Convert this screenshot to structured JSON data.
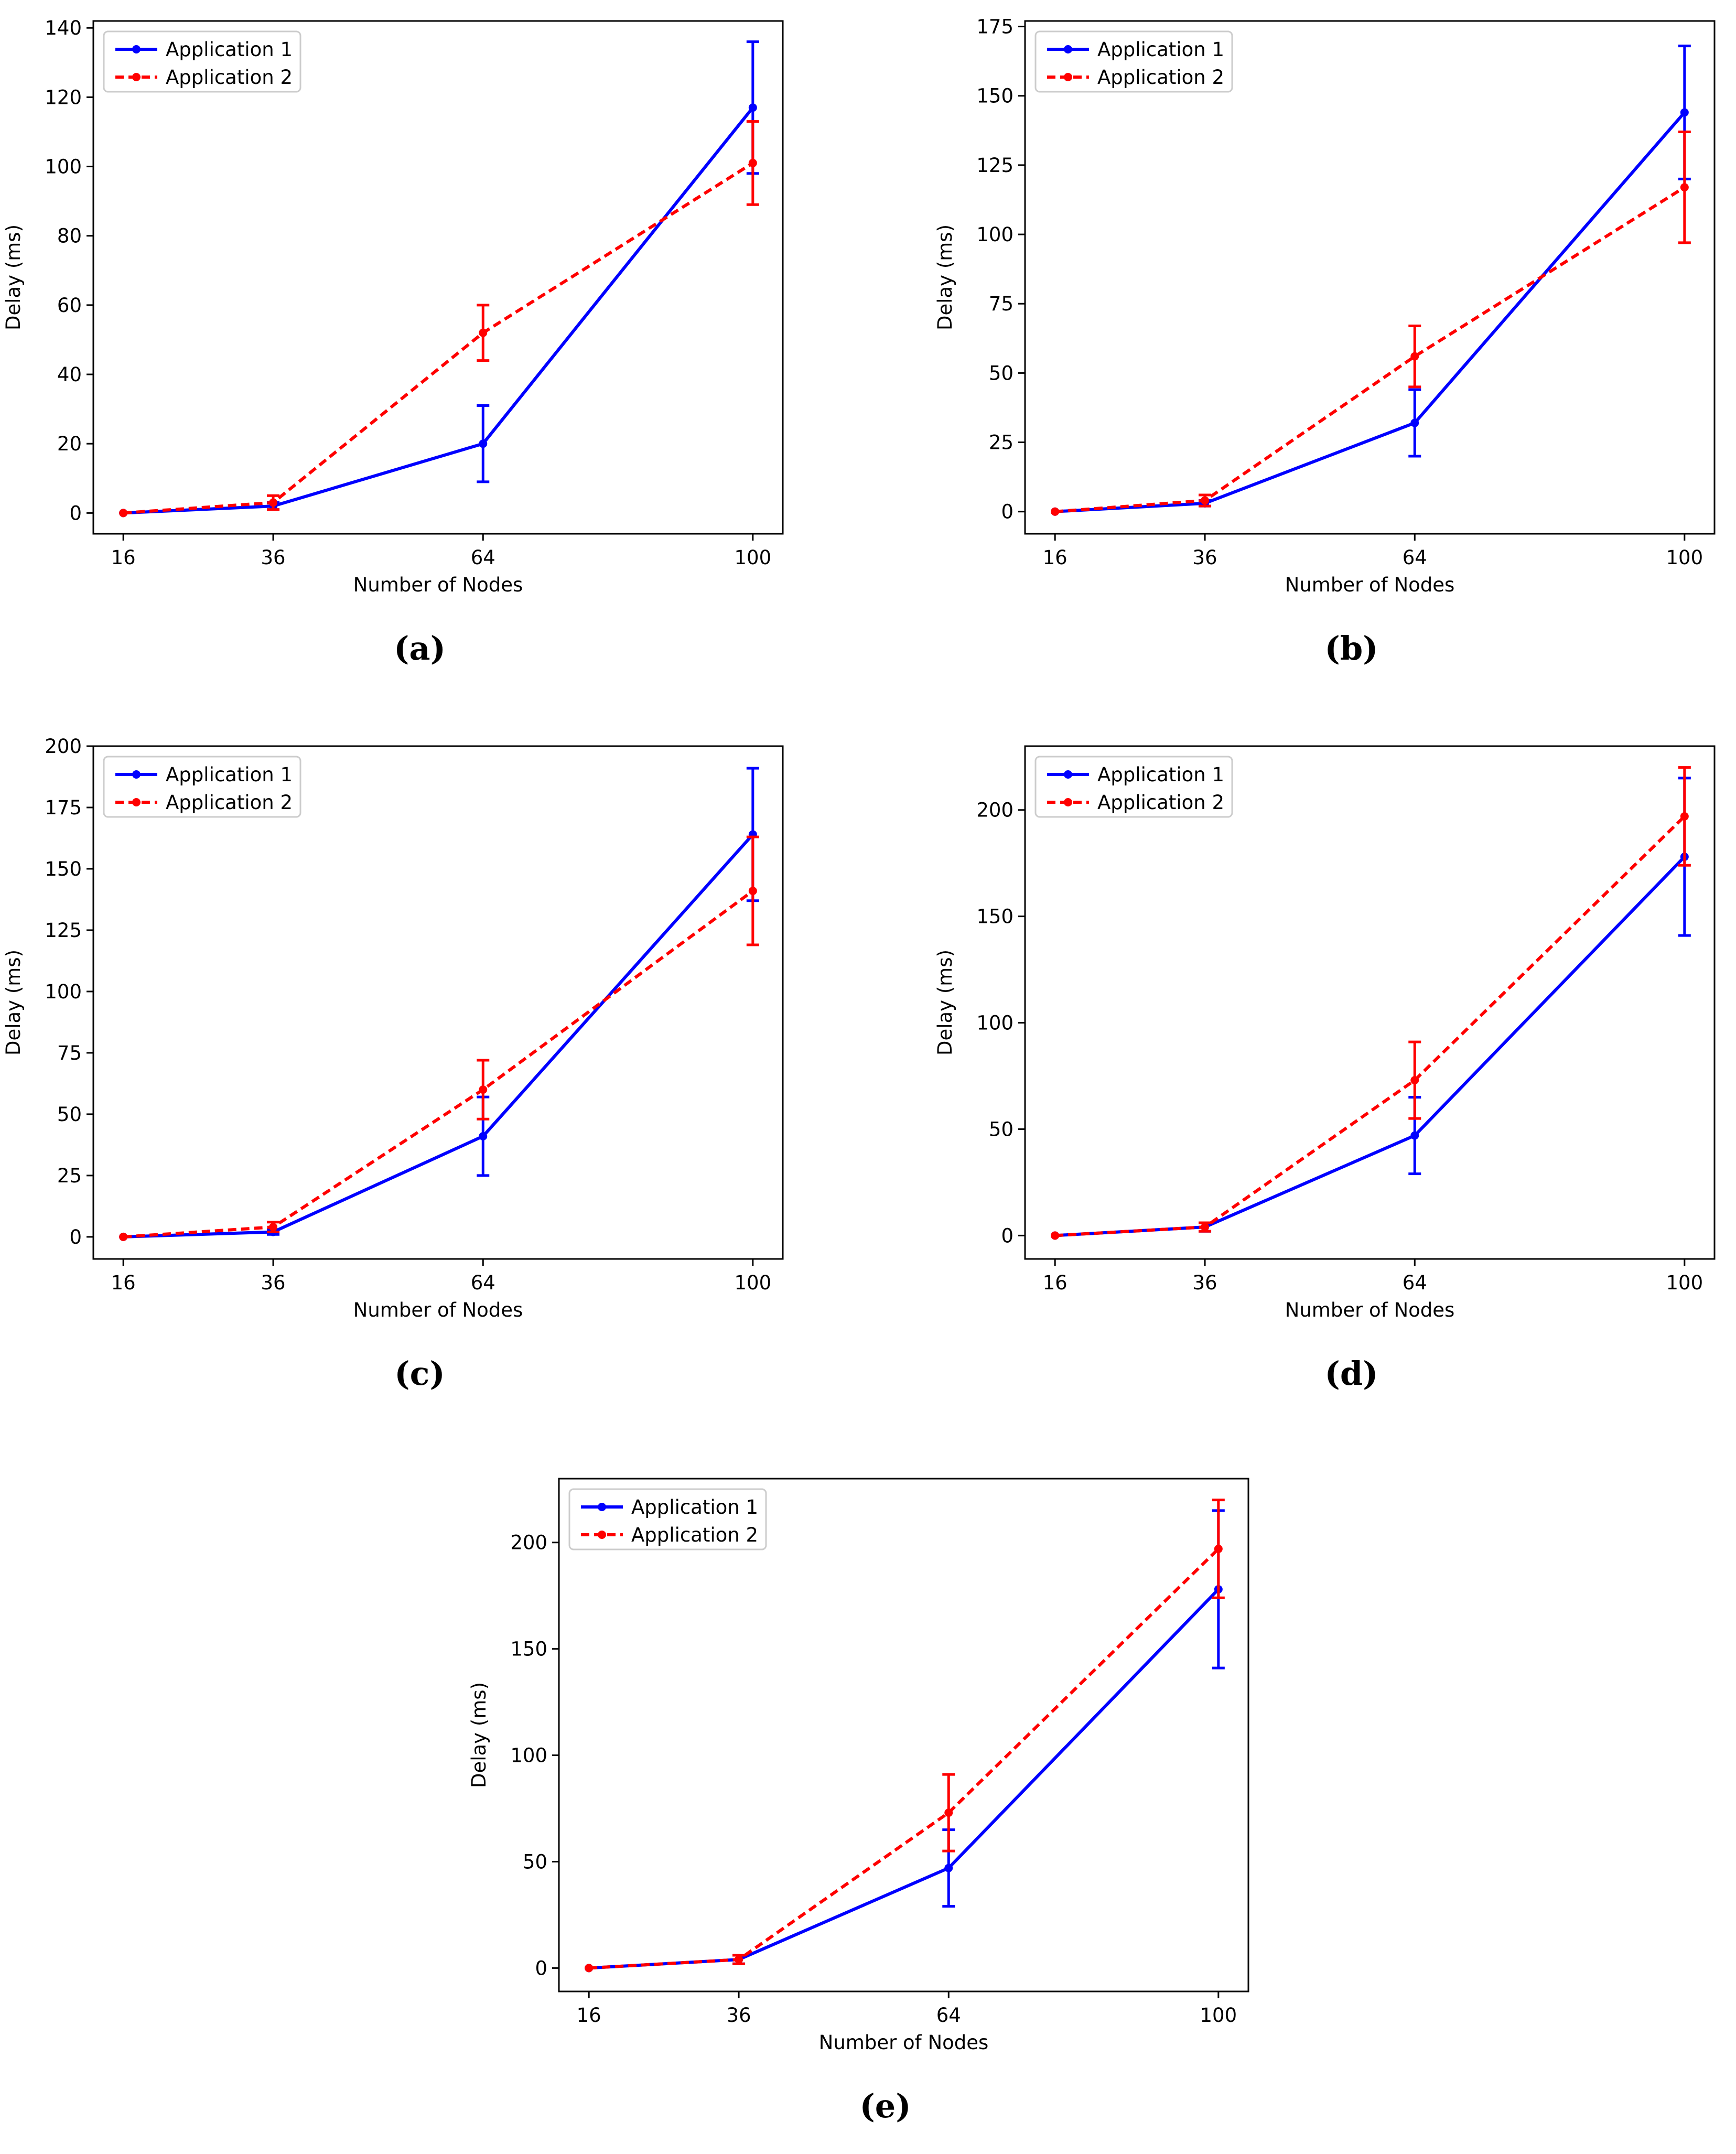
{
  "figure": {
    "panels_layout": "two columns, three rows, last panel centered"
  },
  "colors": {
    "application_1": "#0000ff",
    "application_2": "#ff0000"
  },
  "chart_data": [
    {
      "type": "line",
      "caption": "(a)",
      "xlabel": "Number of Nodes",
      "ylabel": "Delay (ms)",
      "x": [
        16,
        36,
        64,
        100
      ],
      "x_tick_labels": [
        "16",
        "36",
        "64",
        "100"
      ],
      "xlim": [
        12,
        104
      ],
      "ylim": [
        -6,
        142
      ],
      "y_ticks": [
        0,
        20,
        40,
        60,
        80,
        100,
        120,
        140
      ],
      "legend": {
        "position": "top-left",
        "entries": [
          "Application 1",
          "Application 2"
        ]
      },
      "series": [
        {
          "name": "Application 1",
          "values": [
            0,
            2,
            20,
            117
          ],
          "errors": [
            0,
            1,
            11,
            19
          ],
          "style": "solid"
        },
        {
          "name": "Application 2",
          "values": [
            0,
            3,
            52,
            101
          ],
          "errors": [
            0,
            2,
            8,
            12
          ],
          "style": "dashed"
        }
      ]
    },
    {
      "type": "line",
      "caption": "(b)",
      "xlabel": "Number of Nodes",
      "ylabel": "Delay (ms)",
      "x": [
        16,
        36,
        64,
        100
      ],
      "x_tick_labels": [
        "16",
        "36",
        "64",
        "100"
      ],
      "xlim": [
        12,
        104
      ],
      "ylim": [
        -8,
        177
      ],
      "y_ticks": [
        0,
        25,
        50,
        75,
        100,
        125,
        150,
        175
      ],
      "legend": {
        "position": "top-left",
        "entries": [
          "Application 1",
          "Application 2"
        ]
      },
      "series": [
        {
          "name": "Application 1",
          "values": [
            0,
            3,
            32,
            144
          ],
          "errors": [
            0,
            1,
            12,
            24
          ],
          "style": "solid"
        },
        {
          "name": "Application 2",
          "values": [
            0,
            4,
            56,
            117
          ],
          "errors": [
            0,
            2,
            11,
            20
          ],
          "style": "dashed"
        }
      ]
    },
    {
      "type": "line",
      "caption": "(c)",
      "xlabel": "Number of Nodes",
      "ylabel": "Delay (ms)",
      "x": [
        16,
        36,
        64,
        100
      ],
      "x_tick_labels": [
        "16",
        "36",
        "64",
        "100"
      ],
      "xlim": [
        12,
        104
      ],
      "ylim": [
        -9,
        200
      ],
      "y_ticks": [
        0,
        25,
        50,
        75,
        100,
        125,
        150,
        175,
        200
      ],
      "legend": {
        "position": "top-left",
        "entries": [
          "Application 1",
          "Application 2"
        ]
      },
      "series": [
        {
          "name": "Application 1",
          "values": [
            0,
            2,
            41,
            164
          ],
          "errors": [
            0,
            1,
            16,
            27
          ],
          "style": "solid"
        },
        {
          "name": "Application 2",
          "values": [
            0,
            4,
            60,
            141
          ],
          "errors": [
            0,
            2,
            12,
            22
          ],
          "style": "dashed"
        }
      ]
    },
    {
      "type": "line",
      "caption": "(d)",
      "xlabel": "Number of Nodes",
      "ylabel": "Delay (ms)",
      "x": [
        16,
        36,
        64,
        100
      ],
      "x_tick_labels": [
        "16",
        "36",
        "64",
        "100"
      ],
      "xlim": [
        12,
        104
      ],
      "ylim": [
        -11,
        230
      ],
      "y_ticks": [
        0,
        50,
        100,
        150,
        200
      ],
      "legend": {
        "position": "top-left",
        "entries": [
          "Application 1",
          "Application 2"
        ]
      },
      "series": [
        {
          "name": "Application 1",
          "values": [
            0,
            4,
            47,
            178
          ],
          "errors": [
            0,
            2,
            18,
            37
          ],
          "style": "solid"
        },
        {
          "name": "Application 2",
          "values": [
            0,
            4,
            73,
            197
          ],
          "errors": [
            0,
            2,
            18,
            23
          ],
          "style": "dashed"
        }
      ]
    },
    {
      "type": "line",
      "caption": "(e)",
      "xlabel": "Number of Nodes",
      "ylabel": "Delay (ms)",
      "x": [
        16,
        36,
        64,
        100
      ],
      "x_tick_labels": [
        "16",
        "36",
        "64",
        "100"
      ],
      "xlim": [
        12,
        104
      ],
      "ylim": [
        -11,
        230
      ],
      "y_ticks": [
        0,
        50,
        100,
        150,
        200
      ],
      "legend": {
        "position": "top-left",
        "entries": [
          "Application 1",
          "Application 2"
        ]
      },
      "series": [
        {
          "name": "Application 1",
          "values": [
            0,
            4,
            47,
            178
          ],
          "errors": [
            0,
            2,
            18,
            37
          ],
          "style": "solid"
        },
        {
          "name": "Application 2",
          "values": [
            0,
            4,
            73,
            197
          ],
          "errors": [
            0,
            2,
            18,
            23
          ],
          "style": "dashed"
        }
      ]
    }
  ]
}
